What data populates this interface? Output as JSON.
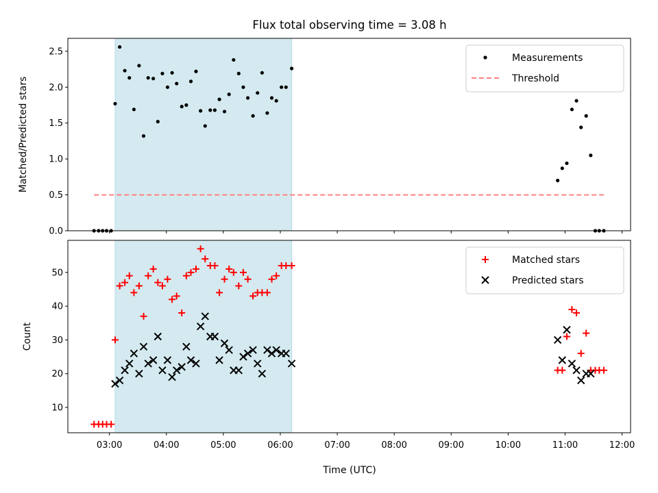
{
  "chart_data": {
    "type": "scatter",
    "title": "Flux total observing time = 3.08 h",
    "xlabel": "Time (UTC)",
    "x_unit": "hours UTC",
    "xlim": [
      2.27,
      12.15
    ],
    "xticks": [
      3,
      4,
      5,
      6,
      7,
      8,
      9,
      10,
      11,
      12
    ],
    "xtick_labels": [
      "03:00",
      "04:00",
      "05:00",
      "06:00",
      "07:00",
      "08:00",
      "09:00",
      "10:00",
      "11:00",
      "12:00"
    ],
    "shaded_interval": [
      3.1,
      6.2
    ],
    "shade_color": "#d4eaf0",
    "panels": [
      {
        "id": "ratio",
        "ylabel": "Matched/Predicted stars",
        "ylim": [
          0,
          2.68
        ],
        "yticks": [
          0.0,
          0.5,
          1.0,
          1.5,
          2.0,
          2.5
        ],
        "ytick_labels": [
          "0.0",
          "0.5",
          "1.0",
          "1.5",
          "2.0",
          "2.5"
        ],
        "legend_position": "top-right",
        "series": [
          {
            "name": "Measurements",
            "marker": "dot",
            "color": "#000000",
            "points": [
              [
                2.73,
                0.0
              ],
              [
                2.81,
                0.0
              ],
              [
                2.88,
                0.0
              ],
              [
                2.95,
                0.0
              ],
              [
                3.03,
                0.0
              ],
              [
                3.1,
                1.77
              ],
              [
                3.18,
                2.56
              ],
              [
                3.27,
                2.23
              ],
              [
                3.35,
                2.13
              ],
              [
                3.43,
                1.69
              ],
              [
                3.52,
                2.3
              ],
              [
                3.6,
                1.32
              ],
              [
                3.68,
                2.13
              ],
              [
                3.77,
                2.12
              ],
              [
                3.85,
                1.52
              ],
              [
                3.93,
                2.19
              ],
              [
                4.02,
                2.0
              ],
              [
                4.1,
                2.2
              ],
              [
                4.18,
                2.05
              ],
              [
                4.27,
                1.73
              ],
              [
                4.35,
                1.75
              ],
              [
                4.43,
                2.08
              ],
              [
                4.52,
                2.22
              ],
              [
                4.6,
                1.67
              ],
              [
                4.68,
                1.46
              ],
              [
                4.77,
                1.68
              ],
              [
                4.85,
                1.68
              ],
              [
                4.93,
                1.83
              ],
              [
                5.02,
                1.66
              ],
              [
                5.1,
                1.9
              ],
              [
                5.18,
                2.38
              ],
              [
                5.27,
                2.19
              ],
              [
                5.35,
                2.0
              ],
              [
                5.43,
                1.85
              ],
              [
                5.52,
                1.6
              ],
              [
                5.6,
                1.92
              ],
              [
                5.68,
                2.2
              ],
              [
                5.77,
                1.64
              ],
              [
                5.85,
                1.85
              ],
              [
                5.93,
                1.81
              ],
              [
                6.02,
                2.0
              ],
              [
                6.1,
                2.0
              ],
              [
                6.2,
                2.26
              ],
              [
                10.87,
                0.7
              ],
              [
                10.95,
                0.87
              ],
              [
                11.03,
                0.94
              ],
              [
                11.12,
                1.69
              ],
              [
                11.2,
                1.81
              ],
              [
                11.28,
                1.44
              ],
              [
                11.37,
                1.6
              ],
              [
                11.45,
                1.05
              ],
              [
                11.53,
                0.0
              ],
              [
                11.6,
                0.0
              ],
              [
                11.68,
                0.0
              ]
            ]
          },
          {
            "name": "Threshold",
            "type": "line",
            "style": "dashed",
            "color": "#ff7f7f",
            "x": [
              2.73,
              11.68
            ],
            "y": [
              0.5,
              0.5
            ]
          }
        ]
      },
      {
        "id": "counts",
        "ylabel": "Count",
        "ylim": [
          2.5,
          59.5
        ],
        "yticks": [
          10,
          20,
          30,
          40,
          50
        ],
        "ytick_labels": [
          "10",
          "20",
          "30",
          "40",
          "50"
        ],
        "legend_position": "top-right",
        "series": [
          {
            "name": "Matched stars",
            "marker": "plus",
            "color": "#ff0000",
            "points": [
              [
                2.73,
                5
              ],
              [
                2.81,
                5
              ],
              [
                2.88,
                5
              ],
              [
                2.95,
                5
              ],
              [
                3.03,
                5
              ],
              [
                3.1,
                30
              ],
              [
                3.18,
                46
              ],
              [
                3.27,
                47
              ],
              [
                3.35,
                49
              ],
              [
                3.43,
                44
              ],
              [
                3.52,
                46
              ],
              [
                3.6,
                37
              ],
              [
                3.68,
                49
              ],
              [
                3.77,
                51
              ],
              [
                3.85,
                47
              ],
              [
                3.93,
                46
              ],
              [
                4.02,
                48
              ],
              [
                4.1,
                42
              ],
              [
                4.18,
                43
              ],
              [
                4.27,
                38
              ],
              [
                4.35,
                49
              ],
              [
                4.43,
                50
              ],
              [
                4.52,
                51
              ],
              [
                4.6,
                57
              ],
              [
                4.68,
                54
              ],
              [
                4.77,
                52
              ],
              [
                4.85,
                52
              ],
              [
                4.93,
                44
              ],
              [
                5.02,
                48
              ],
              [
                5.1,
                51
              ],
              [
                5.18,
                50
              ],
              [
                5.27,
                46
              ],
              [
                5.35,
                50
              ],
              [
                5.43,
                48
              ],
              [
                5.52,
                43
              ],
              [
                5.6,
                44
              ],
              [
                5.68,
                44
              ],
              [
                5.77,
                44
              ],
              [
                5.85,
                48
              ],
              [
                5.93,
                49
              ],
              [
                6.02,
                52
              ],
              [
                6.1,
                52
              ],
              [
                6.2,
                52
              ],
              [
                10.87,
                21
              ],
              [
                10.95,
                21
              ],
              [
                11.03,
                31
              ],
              [
                11.12,
                39
              ],
              [
                11.2,
                38
              ],
              [
                11.28,
                26
              ],
              [
                11.37,
                32
              ],
              [
                11.45,
                21
              ],
              [
                11.53,
                21
              ],
              [
                11.6,
                21
              ],
              [
                11.68,
                21
              ]
            ]
          },
          {
            "name": "Predicted stars",
            "marker": "x",
            "color": "#000000",
            "points": [
              [
                3.1,
                17
              ],
              [
                3.18,
                18
              ],
              [
                3.27,
                21
              ],
              [
                3.35,
                23
              ],
              [
                3.43,
                26
              ],
              [
                3.52,
                20
              ],
              [
                3.6,
                28
              ],
              [
                3.68,
                23
              ],
              [
                3.77,
                24
              ],
              [
                3.85,
                31
              ],
              [
                3.93,
                21
              ],
              [
                4.02,
                24
              ],
              [
                4.1,
                19
              ],
              [
                4.18,
                21
              ],
              [
                4.27,
                22
              ],
              [
                4.35,
                28
              ],
              [
                4.43,
                24
              ],
              [
                4.52,
                23
              ],
              [
                4.6,
                34
              ],
              [
                4.68,
                37
              ],
              [
                4.77,
                31
              ],
              [
                4.85,
                31
              ],
              [
                4.93,
                24
              ],
              [
                5.02,
                29
              ],
              [
                5.1,
                27
              ],
              [
                5.18,
                21
              ],
              [
                5.27,
                21
              ],
              [
                5.35,
                25
              ],
              [
                5.43,
                26
              ],
              [
                5.52,
                27
              ],
              [
                5.6,
                23
              ],
              [
                5.68,
                20
              ],
              [
                5.77,
                27
              ],
              [
                5.85,
                26
              ],
              [
                5.93,
                27
              ],
              [
                6.02,
                26
              ],
              [
                6.1,
                26
              ],
              [
                6.2,
                23
              ],
              [
                10.87,
                30
              ],
              [
                10.95,
                24
              ],
              [
                11.03,
                33
              ],
              [
                11.12,
                23
              ],
              [
                11.2,
                21
              ],
              [
                11.28,
                18
              ],
              [
                11.37,
                20
              ],
              [
                11.45,
                20
              ]
            ]
          }
        ]
      }
    ]
  }
}
